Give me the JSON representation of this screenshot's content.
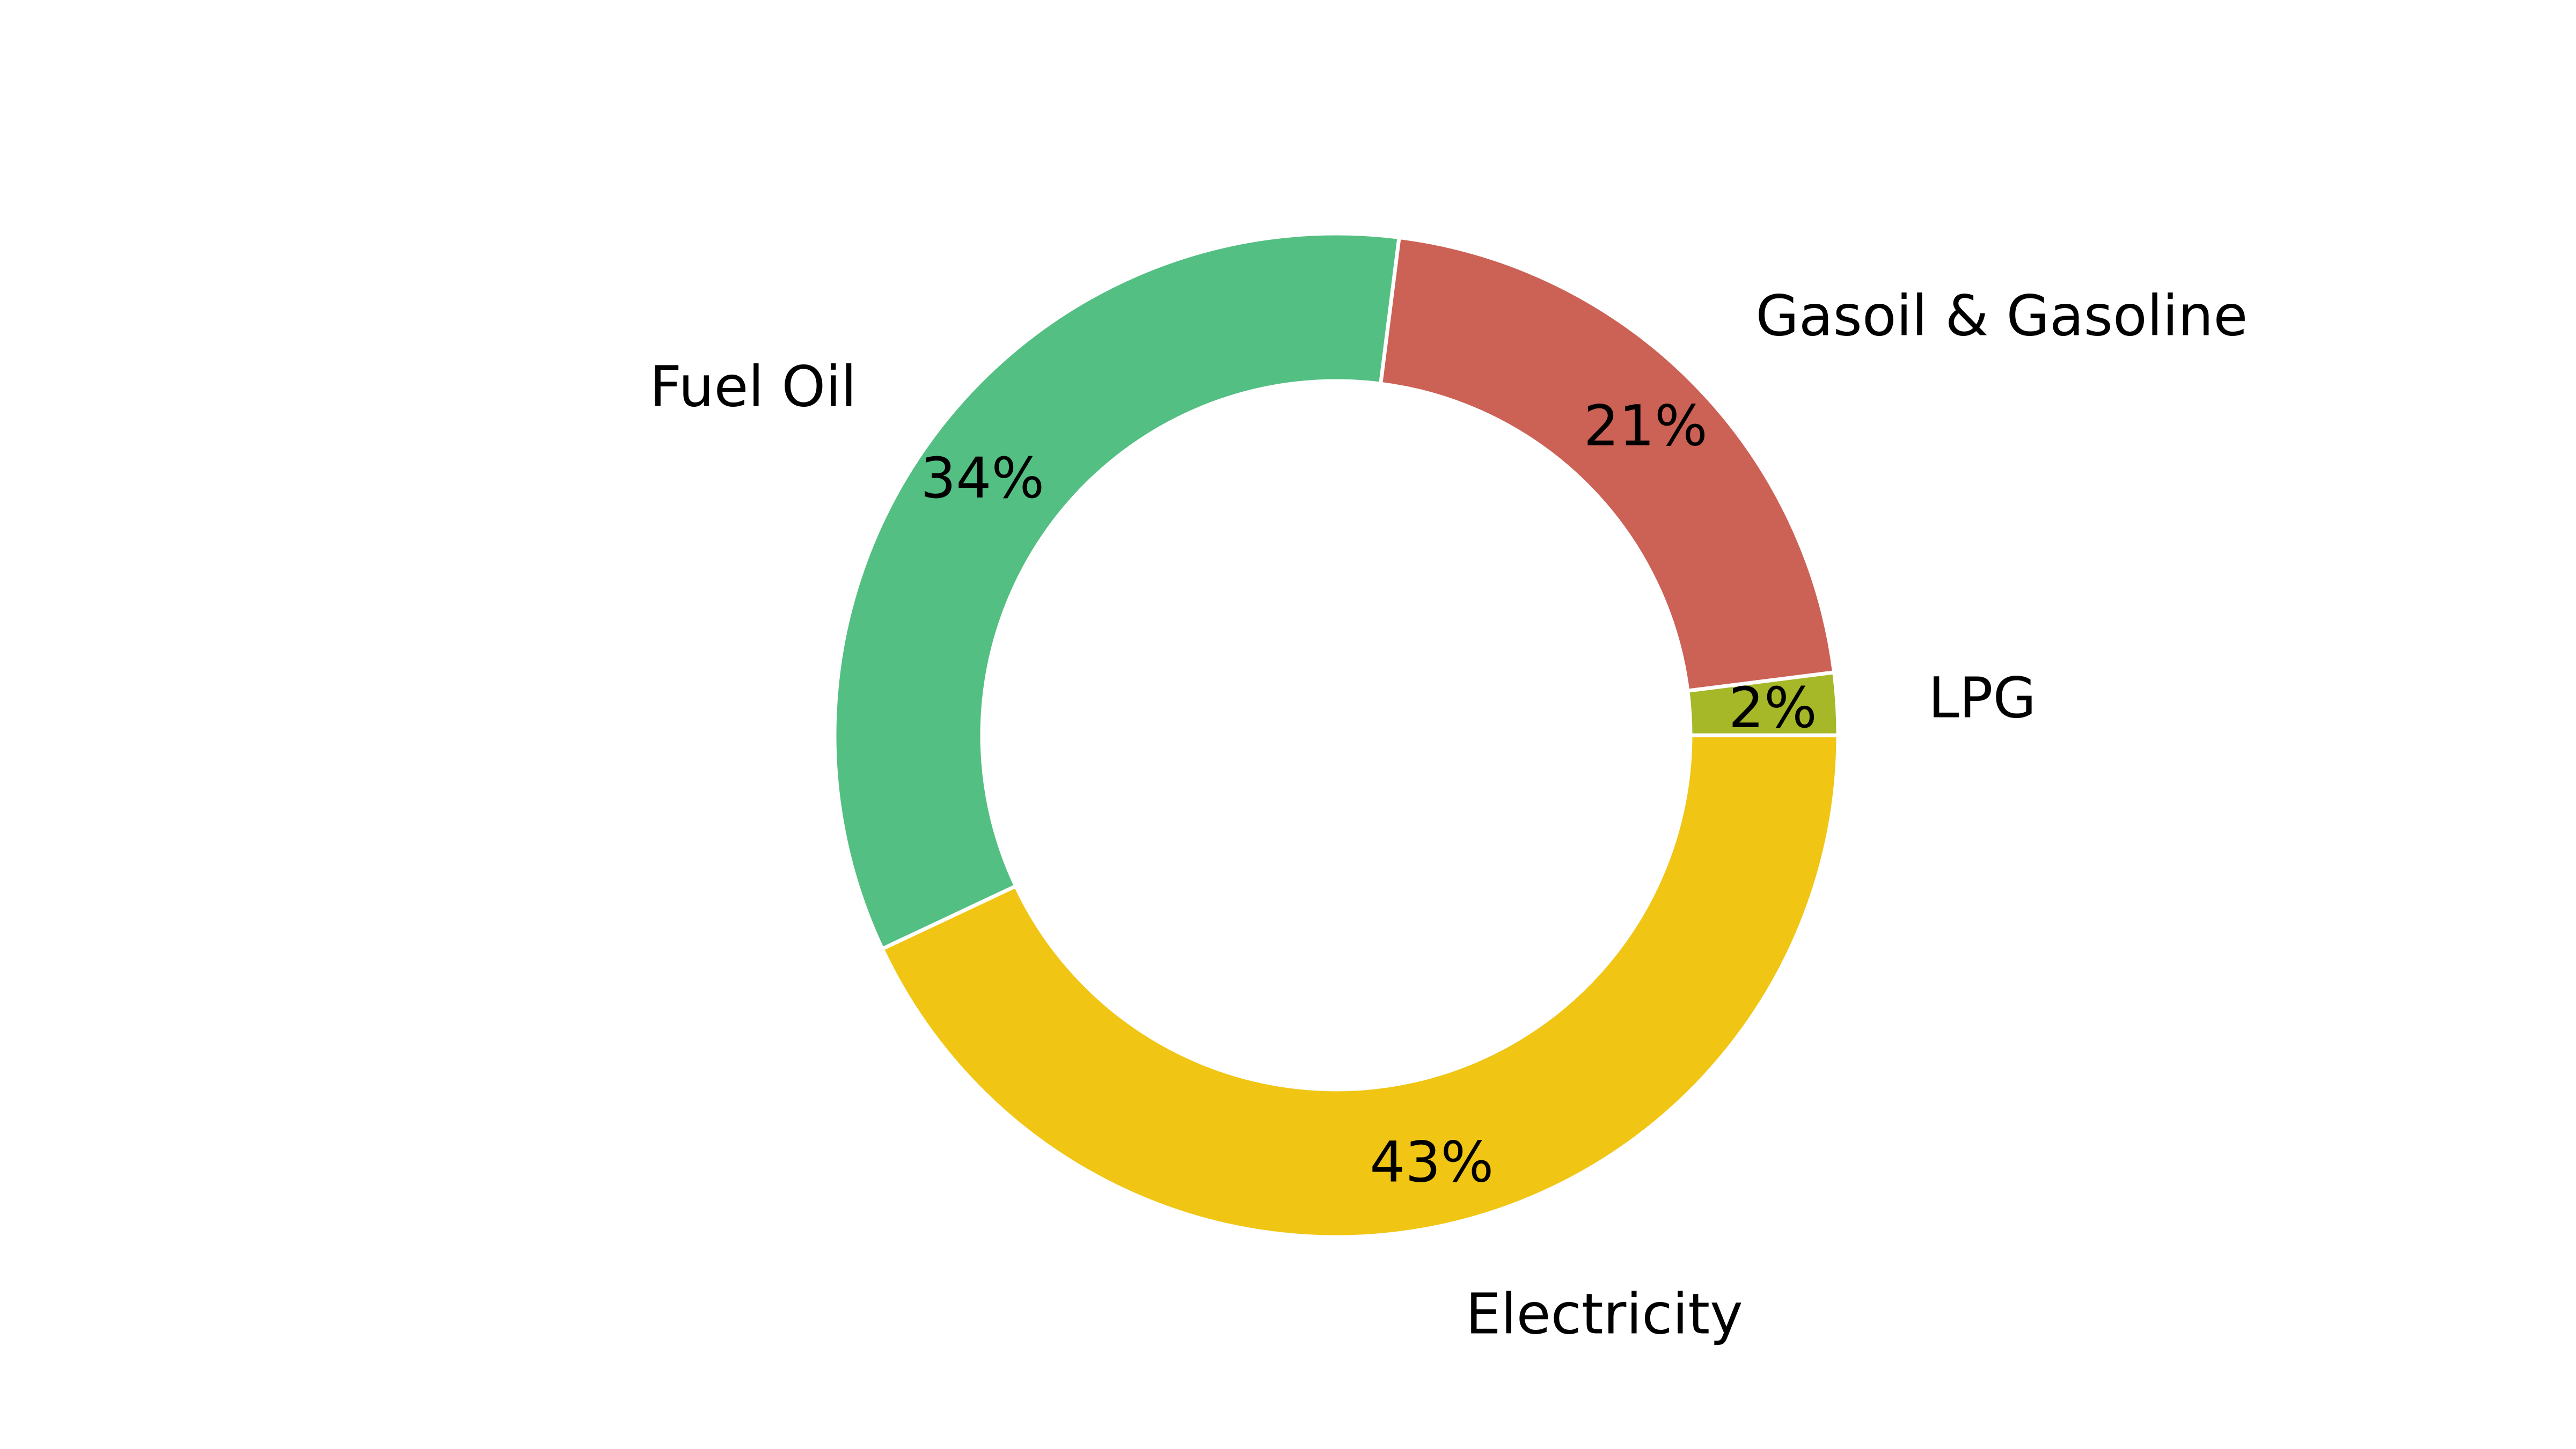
{
  "chart_data": {
    "type": "pie",
    "subtype": "donut",
    "categories": [
      "Electricity",
      "Fuel Oil",
      "Gasoil & Gasoline",
      "LPG"
    ],
    "values": [
      43,
      34,
      21,
      2
    ],
    "value_labels": [
      "43%",
      "34%",
      "21%",
      "2%"
    ],
    "colors": [
      "#F0C513",
      "#54BF82",
      "#CC6155",
      "#A6B727"
    ],
    "title": "",
    "legend": "none"
  }
}
